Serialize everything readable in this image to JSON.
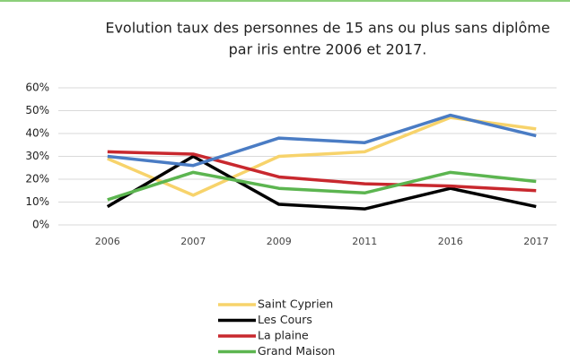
{
  "chart_data": {
    "type": "line",
    "title": [
      "Evolution taux des personnes de 15 ans ou plus sans diplôme",
      "par iris entre 2006 et 2017."
    ],
    "categories": [
      "2006",
      "2007",
      "2009",
      "2011",
      "2016",
      "2017"
    ],
    "series": [
      {
        "name": "Saint Cyprien",
        "color": "#f7d36b",
        "values": [
          29,
          13,
          30,
          32,
          47,
          42
        ]
      },
      {
        "name": "Les Cours",
        "color": "#000000",
        "values": [
          8,
          30,
          9,
          7,
          16,
          8
        ]
      },
      {
        "name": "La plaine",
        "color": "#c8282e",
        "values": [
          32,
          31,
          21,
          18,
          17,
          15
        ]
      },
      {
        "name": "Grand Maison",
        "color": "#5cb550",
        "values": [
          11,
          23,
          16,
          14,
          23,
          19
        ]
      },
      {
        "color": "#4a7cc4",
        "values": [
          30,
          26,
          38,
          36,
          48,
          39
        ]
      }
    ],
    "ylim": [
      0,
      60
    ],
    "yticks": [
      {
        "value": 0,
        "label": "0%"
      },
      {
        "value": 10,
        "label": "10%"
      },
      {
        "value": 20,
        "label": "20%"
      },
      {
        "value": 30,
        "label": "30%"
      },
      {
        "value": 40,
        "label": "40%"
      },
      {
        "value": 50,
        "label": "50%"
      },
      {
        "value": 60,
        "label": "60%"
      }
    ],
    "grid": true
  }
}
